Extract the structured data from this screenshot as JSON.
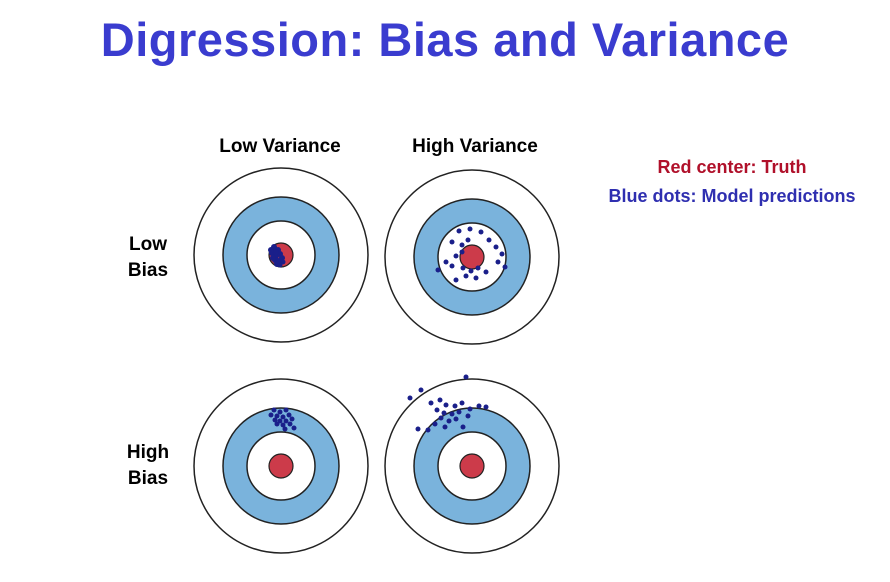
{
  "title": "Digression: Bias and Variance",
  "columns": {
    "low_variance": "Low Variance",
    "high_variance": "High Variance"
  },
  "rows": {
    "low_bias": [
      "Low",
      "Bias"
    ],
    "high_bias": [
      "High",
      "Bias"
    ]
  },
  "legend": {
    "truth": "Red center: Truth",
    "predictions": "Blue dots: Model predictions"
  },
  "colors": {
    "title": "#3a3ccf",
    "ring_blue": "#7ab3dc",
    "bullseye_red": "#cc3b4a",
    "dot_blue": "#1a1f8a",
    "legend_red": "#b0102a",
    "legend_blue": "#2f2fb0"
  }
}
